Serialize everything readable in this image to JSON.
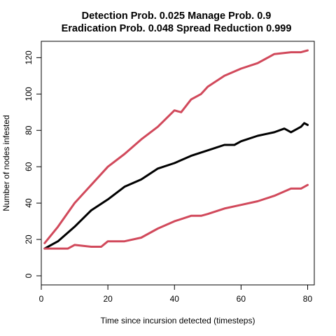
{
  "chart_data": {
    "type": "line",
    "title_line1": "Detection Prob. 0.025 Manage Prob. 0.9",
    "title_line2": "Eradication Prob. 0.048 Spread Reduction 0.999",
    "xlabel": "Time since incursion detected (timesteps)",
    "ylabel": "Number of nodes infested",
    "xlim": [
      0,
      82
    ],
    "ylim": [
      -5,
      129
    ],
    "x_ticks": [
      0,
      20,
      40,
      60,
      80
    ],
    "y_ticks": [
      0,
      20,
      40,
      60,
      80,
      100,
      120
    ],
    "grid": false,
    "series": [
      {
        "color": "#D1495B",
        "role": "upper-bound",
        "x": [
          1,
          5,
          10,
          15,
          20,
          25,
          30,
          35,
          40,
          42,
          45,
          48,
          50,
          55,
          60,
          65,
          70,
          75,
          78,
          80
        ],
        "values": [
          18,
          27,
          40,
          50,
          60,
          67,
          75,
          82,
          91,
          90,
          97,
          100,
          104,
          110,
          114,
          117,
          122,
          123,
          123,
          124
        ]
      },
      {
        "color": "#000000",
        "role": "mean",
        "x": [
          1,
          5,
          10,
          15,
          20,
          25,
          30,
          35,
          40,
          45,
          50,
          55,
          58,
          60,
          65,
          70,
          73,
          75,
          78,
          79,
          80
        ],
        "values": [
          15,
          19,
          27,
          36,
          42,
          49,
          53,
          59,
          62,
          66,
          69,
          72,
          72,
          74,
          77,
          79,
          81,
          79,
          82,
          84,
          83
        ]
      },
      {
        "color": "#D1495B",
        "role": "lower-bound",
        "x": [
          1,
          5,
          8,
          10,
          15,
          18,
          20,
          25,
          30,
          35,
          40,
          45,
          48,
          50,
          55,
          60,
          65,
          70,
          75,
          78,
          80
        ],
        "values": [
          15,
          15,
          15,
          17,
          16,
          16,
          19,
          19,
          21,
          26,
          30,
          33,
          33,
          34,
          37,
          39,
          41,
          44,
          48,
          48,
          50
        ]
      }
    ]
  }
}
